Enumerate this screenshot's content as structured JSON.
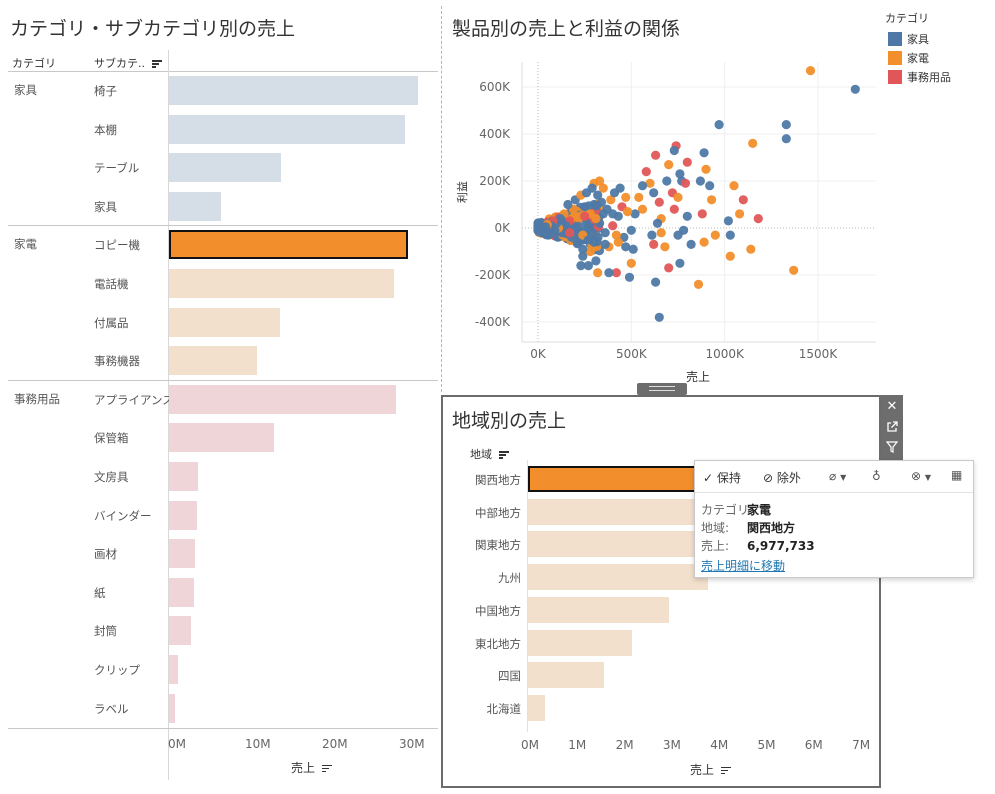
{
  "left_panel": {
    "title": "カテゴリ・サブカテゴリ別の売上",
    "header_category": "カテゴリ",
    "header_subcategory": "サブカテ..",
    "axis_label": "売上",
    "ticks": [
      "0M",
      "10M",
      "20M",
      "30M"
    ]
  },
  "scatter_panel": {
    "title": "製品別の売上と利益の関係",
    "xlabel": "売上",
    "ylabel": "利益",
    "xticks": [
      "0K",
      "500K",
      "1000K",
      "1500K"
    ],
    "yticks": [
      "600K",
      "400K",
      "200K",
      "0K",
      "-200K",
      "-400K"
    ]
  },
  "legend": {
    "title": "カテゴリ",
    "items": [
      {
        "label": "家具",
        "color": "#4e79a7"
      },
      {
        "label": "家電",
        "color": "#f28e2b"
      },
      {
        "label": "事務用品",
        "color": "#e15759"
      }
    ]
  },
  "region_panel": {
    "title": "地域別の売上",
    "header": "地域",
    "axis_label": "売上",
    "ticks": [
      "0M",
      "1M",
      "2M",
      "3M",
      "4M",
      "5M",
      "6M",
      "7M"
    ],
    "toolbar_icons": [
      "close-icon",
      "popout-icon",
      "filter-icon"
    ]
  },
  "tooltip": {
    "keep_label": "保持",
    "exclude_label": "除外",
    "rows": [
      {
        "key": "カテゴリ:",
        "value": "家電"
      },
      {
        "key": "地域:",
        "value": "関西地方"
      },
      {
        "key": "売上:",
        "value": "6,977,733"
      }
    ],
    "link": "売上明細に移動"
  },
  "chart_data": [
    {
      "type": "bar",
      "orientation": "horizontal",
      "title": "カテゴリ・サブカテゴリ別の売上",
      "xlabel": "売上",
      "xlim": [
        0,
        33
      ],
      "unit": "M",
      "groups": [
        {
          "category": "家具",
          "color": "#d5dde6",
          "items": [
            {
              "name": "椅子",
              "value": 32.3
            },
            {
              "name": "本棚",
              "value": 30.6
            },
            {
              "name": "テーブル",
              "value": 14.5
            },
            {
              "name": "家具",
              "value": 6.8
            }
          ]
        },
        {
          "category": "家電",
          "color": "#f3e0cc",
          "items": [
            {
              "name": "コピー機",
              "value": 31.0,
              "selected": true
            },
            {
              "name": "電話機",
              "value": 29.2
            },
            {
              "name": "付属品",
              "value": 14.4
            },
            {
              "name": "事務機器",
              "value": 11.4
            }
          ]
        },
        {
          "category": "事務用品",
          "color": "#efd5d8",
          "items": [
            {
              "name": "アプライアンス",
              "value": 29.5
            },
            {
              "name": "保管箱",
              "value": 13.7
            },
            {
              "name": "文房具",
              "value": 3.8
            },
            {
              "name": "バインダー",
              "value": 3.6
            },
            {
              "name": "画材",
              "value": 3.4
            },
            {
              "name": "紙",
              "value": 3.3
            },
            {
              "name": "封筒",
              "value": 2.9
            },
            {
              "name": "クリップ",
              "value": 1.2
            },
            {
              "name": "ラベル",
              "value": 0.8
            }
          ]
        }
      ],
      "selected_color": "#f28e2b"
    },
    {
      "type": "scatter",
      "title": "製品別の売上と利益の関係",
      "xlabel": "売上",
      "ylabel": "利益",
      "xlim": [
        -70,
        1860
      ],
      "ylim": [
        -470,
        720
      ],
      "unit": "K",
      "points": [
        {
          "x": 1700,
          "y": 590,
          "c": 0
        },
        {
          "x": 1460,
          "y": 670,
          "c": 1
        },
        {
          "x": 1330,
          "y": 440,
          "c": 0
        },
        {
          "x": 1330,
          "y": 380,
          "c": 0
        },
        {
          "x": 970,
          "y": 440,
          "c": 0
        },
        {
          "x": 1150,
          "y": 360,
          "c": 1
        },
        {
          "x": 1370,
          "y": -180,
          "c": 1
        },
        {
          "x": 1180,
          "y": 40,
          "c": 2
        },
        {
          "x": 1100,
          "y": 120,
          "c": 2
        },
        {
          "x": 1080,
          "y": 60,
          "c": 1
        },
        {
          "x": 1050,
          "y": 180,
          "c": 1
        },
        {
          "x": 1030,
          "y": -120,
          "c": 1
        },
        {
          "x": 1020,
          "y": 30,
          "c": 0
        },
        {
          "x": 1030,
          "y": -30,
          "c": 0
        },
        {
          "x": 1140,
          "y": -90,
          "c": 1
        },
        {
          "x": 920,
          "y": 180,
          "c": 0
        },
        {
          "x": 930,
          "y": 120,
          "c": 1
        },
        {
          "x": 900,
          "y": 250,
          "c": 1
        },
        {
          "x": 890,
          "y": 320,
          "c": 0
        },
        {
          "x": 870,
          "y": 200,
          "c": 0
        },
        {
          "x": 890,
          "y": -60,
          "c": 1
        },
        {
          "x": 950,
          "y": -30,
          "c": 1
        },
        {
          "x": 880,
          "y": 60,
          "c": 2
        },
        {
          "x": 860,
          "y": -240,
          "c": 1
        },
        {
          "x": 740,
          "y": 350,
          "c": 2
        },
        {
          "x": 730,
          "y": 330,
          "c": 0
        },
        {
          "x": 800,
          "y": 280,
          "c": 2
        },
        {
          "x": 760,
          "y": 230,
          "c": 0
        },
        {
          "x": 770,
          "y": 200,
          "c": 0
        },
        {
          "x": 790,
          "y": 190,
          "c": 2
        },
        {
          "x": 700,
          "y": 270,
          "c": 1
        },
        {
          "x": 720,
          "y": 150,
          "c": 2
        },
        {
          "x": 750,
          "y": 130,
          "c": 1
        },
        {
          "x": 690,
          "y": 200,
          "c": 0
        },
        {
          "x": 730,
          "y": 80,
          "c": 2
        },
        {
          "x": 800,
          "y": 50,
          "c": 0
        },
        {
          "x": 780,
          "y": -10,
          "c": 0
        },
        {
          "x": 750,
          "y": -30,
          "c": 0
        },
        {
          "x": 820,
          "y": -70,
          "c": 0
        },
        {
          "x": 760,
          "y": -150,
          "c": 0
        },
        {
          "x": 700,
          "y": -170,
          "c": 2
        },
        {
          "x": 680,
          "y": -80,
          "c": 1
        },
        {
          "x": 650,
          "y": -380,
          "c": 0
        },
        {
          "x": 630,
          "y": -230,
          "c": 0
        },
        {
          "x": 630,
          "y": 310,
          "c": 2
        },
        {
          "x": 580,
          "y": 240,
          "c": 2
        },
        {
          "x": 600,
          "y": 190,
          "c": 1
        },
        {
          "x": 620,
          "y": 150,
          "c": 0
        },
        {
          "x": 650,
          "y": 110,
          "c": 2
        },
        {
          "x": 660,
          "y": 40,
          "c": 1
        },
        {
          "x": 640,
          "y": 20,
          "c": 0
        },
        {
          "x": 610,
          "y": -30,
          "c": 0
        },
        {
          "x": 620,
          "y": -70,
          "c": 2
        },
        {
          "x": 660,
          "y": -20,
          "c": 1
        },
        {
          "x": 560,
          "y": 180,
          "c": 0
        },
        {
          "x": 540,
          "y": 130,
          "c": 1
        },
        {
          "x": 560,
          "y": 80,
          "c": 1
        },
        {
          "x": 520,
          "y": 60,
          "c": 0
        },
        {
          "x": 500,
          "y": -10,
          "c": 0
        },
        {
          "x": 510,
          "y": -90,
          "c": 0
        },
        {
          "x": 500,
          "y": -150,
          "c": 1
        },
        {
          "x": 490,
          "y": -210,
          "c": 0
        },
        {
          "x": 460,
          "y": -40,
          "c": 0
        },
        {
          "x": 470,
          "y": 130,
          "c": 1
        },
        {
          "x": 450,
          "y": 90,
          "c": 2
        },
        {
          "x": 430,
          "y": 50,
          "c": 0
        },
        {
          "x": 420,
          "y": -30,
          "c": 1
        },
        {
          "x": 400,
          "y": 10,
          "c": 2
        },
        {
          "x": 390,
          "y": 120,
          "c": 1
        },
        {
          "x": 370,
          "y": 80,
          "c": 0
        },
        {
          "x": 360,
          "y": -20,
          "c": 0
        },
        {
          "x": 380,
          "y": -80,
          "c": 1
        },
        {
          "x": 350,
          "y": 170,
          "c": 1
        },
        {
          "x": 330,
          "y": 200,
          "c": 1
        },
        {
          "x": 300,
          "y": 190,
          "c": 1
        },
        {
          "x": 300,
          "y": -60,
          "c": 0
        },
        {
          "x": 310,
          "y": -140,
          "c": 0
        },
        {
          "x": 280,
          "y": -100,
          "c": 1
        },
        {
          "x": 270,
          "y": -160,
          "c": 0
        },
        {
          "x": 240,
          "y": -120,
          "c": 0
        },
        {
          "x": 230,
          "y": -160,
          "c": 0
        },
        {
          "x": 240,
          "y": -90,
          "c": 0
        },
        {
          "x": 320,
          "y": -190,
          "c": 1
        },
        {
          "x": 420,
          "y": -190,
          "c": 2
        },
        {
          "x": 380,
          "y": -190,
          "c": 0
        },
        {
          "x": 300,
          "y": 100,
          "c": 0
        },
        {
          "x": 280,
          "y": 60,
          "c": 1
        },
        {
          "x": 260,
          "y": 20,
          "c": 0
        },
        {
          "x": 250,
          "y": 90,
          "c": 0
        },
        {
          "x": 220,
          "y": 50,
          "c": 1
        },
        {
          "x": 200,
          "y": 0,
          "c": 0
        },
        {
          "x": 180,
          "y": -40,
          "c": 0
        },
        {
          "x": 170,
          "y": 30,
          "c": 2
        },
        {
          "x": 150,
          "y": 10,
          "c": 0
        },
        {
          "x": 140,
          "y": 60,
          "c": 1
        },
        {
          "x": 130,
          "y": -20,
          "c": 0
        },
        {
          "x": 120,
          "y": 40,
          "c": 0
        },
        {
          "x": 110,
          "y": 0,
          "c": 1
        },
        {
          "x": 100,
          "y": 20,
          "c": 0
        },
        {
          "x": 90,
          "y": -10,
          "c": 0
        },
        {
          "x": 80,
          "y": 30,
          "c": 2
        },
        {
          "x": 70,
          "y": 10,
          "c": 0
        },
        {
          "x": 60,
          "y": -5,
          "c": 0
        },
        {
          "x": 50,
          "y": 15,
          "c": 1
        },
        {
          "x": 40,
          "y": 5,
          "c": 0
        },
        {
          "x": 30,
          "y": -5,
          "c": 0
        },
        {
          "x": 20,
          "y": 5,
          "c": 0
        },
        {
          "x": 10,
          "y": 0,
          "c": 0
        },
        {
          "x": 200,
          "y": 120,
          "c": 0
        },
        {
          "x": 230,
          "y": 140,
          "c": 1
        },
        {
          "x": 260,
          "y": 150,
          "c": 0
        },
        {
          "x": 290,
          "y": 170,
          "c": 0
        },
        {
          "x": 320,
          "y": 140,
          "c": 0
        },
        {
          "x": 340,
          "y": 110,
          "c": 0
        },
        {
          "x": 350,
          "y": 60,
          "c": 0
        },
        {
          "x": 330,
          "y": 20,
          "c": 0
        },
        {
          "x": 310,
          "y": 40,
          "c": 1
        },
        {
          "x": 240,
          "y": -30,
          "c": 1
        },
        {
          "x": 210,
          "y": -60,
          "c": 0
        },
        {
          "x": 190,
          "y": 80,
          "c": 1
        },
        {
          "x": 160,
          "y": 100,
          "c": 0
        },
        {
          "x": 170,
          "y": -20,
          "c": 2
        },
        {
          "x": 270,
          "y": -50,
          "c": 0
        },
        {
          "x": 400,
          "y": 60,
          "c": 0
        },
        {
          "x": 410,
          "y": 150,
          "c": 0
        },
        {
          "x": 440,
          "y": 170,
          "c": 0
        },
        {
          "x": 480,
          "y": 70,
          "c": 1
        },
        {
          "x": 470,
          "y": -80,
          "c": 0
        },
        {
          "x": 430,
          "y": -60,
          "c": 1
        },
        {
          "x": 360,
          "y": -70,
          "c": 0
        },
        {
          "x": 290,
          "y": -20,
          "c": 0
        },
        {
          "x": 250,
          "y": 50,
          "c": 2
        }
      ],
      "scatter_colors": [
        "#4e79a7",
        "#f28e2b",
        "#e15759"
      ]
    },
    {
      "type": "bar",
      "orientation": "horizontal",
      "title": "地域別の売上",
      "xlabel": "売上",
      "xlim": [
        0,
        7
      ],
      "unit": "M",
      "color": "#f3e0cc",
      "selected_color": "#f28e2b",
      "items": [
        {
          "name": "関西地方",
          "value": 6.98,
          "selected": true
        },
        {
          "name": "中部地方",
          "value": 4.9
        },
        {
          "name": "関東地方",
          "value": 4.4
        },
        {
          "name": "九州",
          "value": 3.8
        },
        {
          "name": "中国地方",
          "value": 2.98
        },
        {
          "name": "東北地方",
          "value": 2.2
        },
        {
          "name": "四国",
          "value": 1.6
        },
        {
          "name": "北海道",
          "value": 0.35
        }
      ]
    }
  ]
}
